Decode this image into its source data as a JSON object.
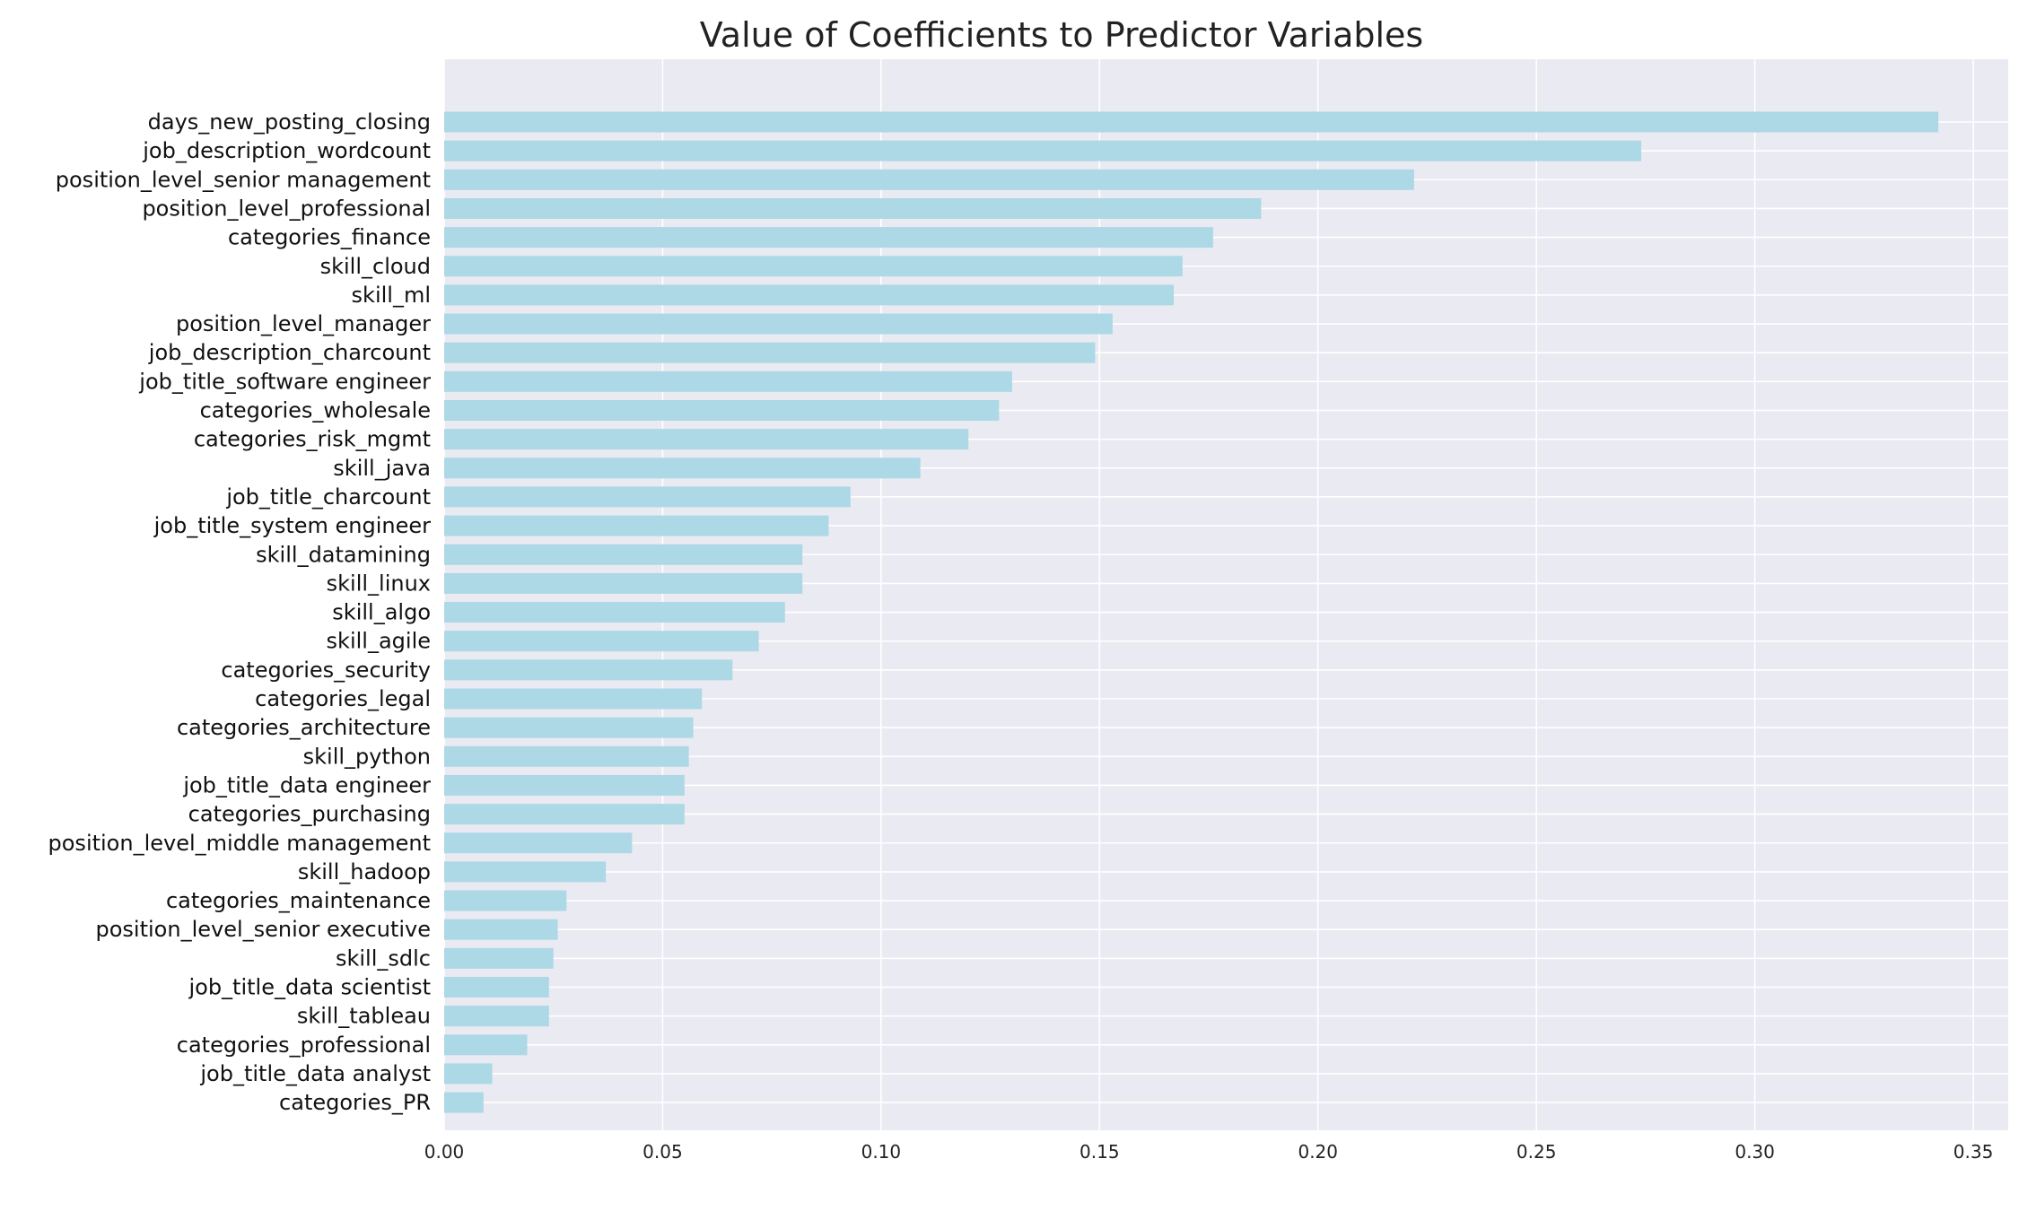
{
  "chart_data": {
    "type": "bar",
    "orientation": "horizontal",
    "title": "Value of Coefficients to Predictor Variables",
    "xlabel": "",
    "ylabel": "",
    "xlim": [
      0,
      0.358
    ],
    "xticks": [
      "0.00",
      "0.05",
      "0.10",
      "0.15",
      "0.20",
      "0.25",
      "0.30",
      "0.35"
    ],
    "xtick_values": [
      0,
      0.05,
      0.1,
      0.15,
      0.2,
      0.25,
      0.3,
      0.35
    ],
    "grid": true,
    "legend": "none",
    "colors": {
      "bar": "#add8e6",
      "background": "#eaeaf2",
      "grid": "#ffffff"
    },
    "categories": [
      "days_new_posting_closing",
      "job_description_wordcount",
      "position_level_senior management",
      "position_level_professional",
      "categories_finance",
      "skill_cloud",
      "skill_ml",
      "position_level_manager",
      "job_description_charcount",
      "job_title_software engineer",
      "categories_wholesale",
      "categories_risk_mgmt",
      "skill_java",
      "job_title_charcount",
      "job_title_system engineer",
      "skill_datamining",
      "skill_linux",
      "skill_algo",
      "skill_agile",
      "categories_security",
      "categories_legal",
      "categories_architecture",
      "skill_python",
      "job_title_data engineer",
      "categories_purchasing",
      "position_level_middle management",
      "skill_hadoop",
      "categories_maintenance",
      "position_level_senior executive",
      "skill_sdlc",
      "job_title_data scientist",
      "skill_tableau",
      "categories_professional",
      "job_title_data analyst",
      "categories_PR"
    ],
    "values": [
      0.342,
      0.274,
      0.222,
      0.187,
      0.176,
      0.169,
      0.167,
      0.153,
      0.149,
      0.13,
      0.127,
      0.12,
      0.109,
      0.093,
      0.088,
      0.082,
      0.082,
      0.078,
      0.072,
      0.066,
      0.059,
      0.057,
      0.056,
      0.055,
      0.055,
      0.043,
      0.037,
      0.028,
      0.026,
      0.025,
      0.024,
      0.024,
      0.019,
      0.011,
      0.009
    ]
  }
}
